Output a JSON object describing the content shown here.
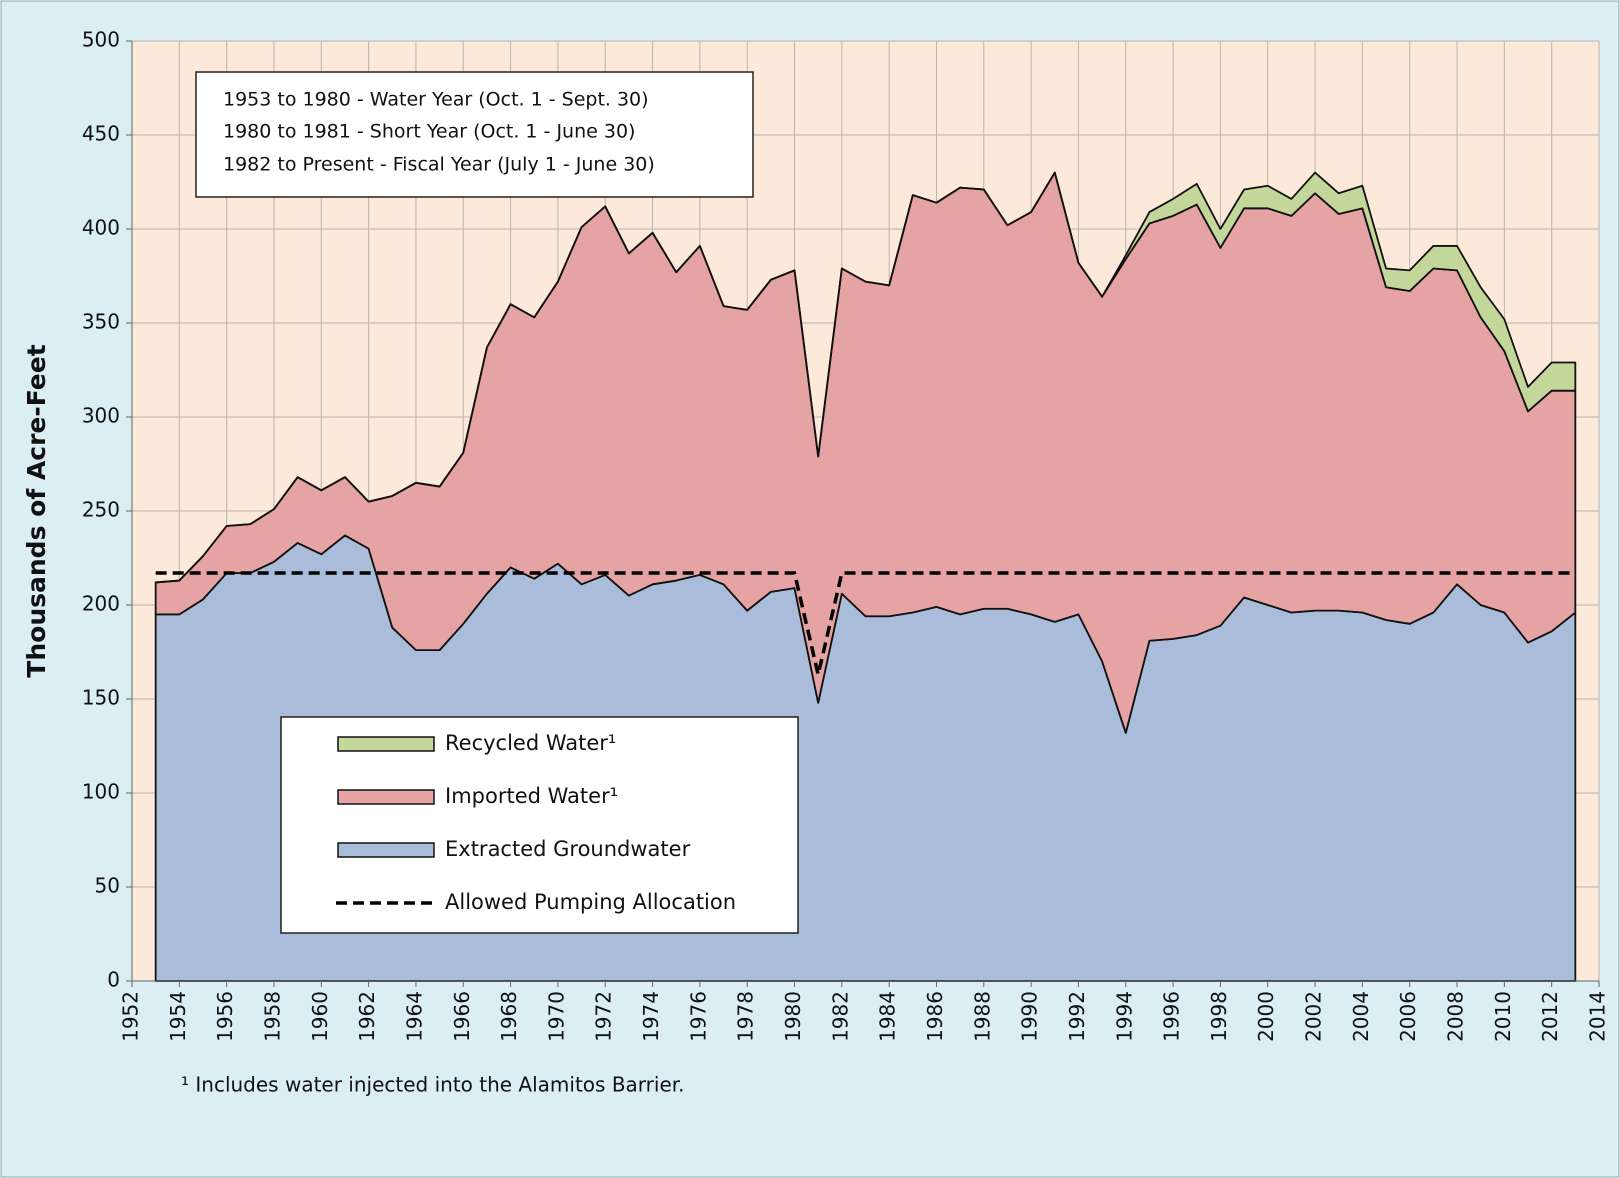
{
  "chart_data": {
    "type": "stacked_area",
    "y_label": "Thousands of Acre-Feet",
    "annotation": [
      "1953 to 1980 - Water Year (Oct. 1 - Sept. 30)",
      "1980 to 1981 - Short Year (Oct. 1 - June 30)",
      "1982 to Present - Fiscal Year (July 1 - June 30)"
    ],
    "footnote": "¹  Includes water injected into the Alamitos Barrier.",
    "x": [
      1953,
      1954,
      1955,
      1956,
      1957,
      1958,
      1959,
      1960,
      1961,
      1962,
      1963,
      1964,
      1965,
      1966,
      1967,
      1968,
      1969,
      1970,
      1971,
      1972,
      1973,
      1974,
      1975,
      1976,
      1977,
      1978,
      1979,
      1980,
      1981,
      1982,
      1983,
      1984,
      1985,
      1986,
      1987,
      1988,
      1989,
      1990,
      1991,
      1992,
      1993,
      1994,
      1995,
      1996,
      1997,
      1998,
      1999,
      2000,
      2001,
      2002,
      2003,
      2004,
      2005,
      2006,
      2007,
      2008,
      2009,
      2010,
      2011,
      2012,
      2013
    ],
    "series": [
      {
        "name": "Extracted Groundwater",
        "color": "#a9bcd9",
        "values": [
          195,
          195,
          203,
          217,
          217,
          223,
          233,
          227,
          237,
          230,
          188,
          176,
          176,
          190,
          206,
          220,
          214,
          222,
          211,
          216,
          205,
          211,
          213,
          216,
          211,
          197,
          207,
          209,
          148,
          206,
          194,
          194,
          196,
          199,
          195,
          198,
          198,
          195,
          191,
          195,
          170,
          132,
          181,
          182,
          184,
          189,
          204,
          200,
          196,
          197,
          197,
          196,
          192,
          190,
          196,
          211,
          200,
          196,
          180,
          186,
          196
        ]
      },
      {
        "name": "Imported Water¹",
        "color": "#e6a3a3",
        "values": [
          17,
          18,
          23,
          25,
          26,
          28,
          35,
          34,
          31,
          25,
          70,
          89,
          87,
          91,
          131,
          140,
          139,
          150,
          190,
          196,
          182,
          187,
          164,
          175,
          148,
          160,
          166,
          169,
          131,
          173,
          178,
          176,
          222,
          215,
          227,
          223,
          204,
          214,
          239,
          187,
          194,
          252,
          222,
          225,
          229,
          201,
          207,
          211,
          211,
          222,
          211,
          215,
          177,
          177,
          183,
          167,
          153,
          139,
          123,
          128,
          118
        ]
      },
      {
        "name": "Recycled Water¹",
        "color": "#c4d79b",
        "values": [
          0,
          0,
          0,
          0,
          0,
          0,
          0,
          0,
          0,
          0,
          0,
          0,
          0,
          0,
          0,
          0,
          0,
          0,
          0,
          0,
          0,
          0,
          0,
          0,
          0,
          0,
          0,
          0,
          0,
          0,
          0,
          0,
          0,
          0,
          0,
          0,
          0,
          0,
          0,
          0,
          0,
          2,
          6,
          9,
          11,
          10,
          10,
          12,
          9,
          11,
          11,
          12,
          10,
          11,
          12,
          13,
          16,
          17,
          13,
          15,
          15
        ]
      },
      {
        "name": "Allowed Pumping Allocation",
        "type": "line",
        "dashed": true,
        "color": "#000000",
        "values": [
          217,
          217,
          217,
          217,
          217,
          217,
          217,
          217,
          217,
          217,
          217,
          217,
          217,
          217,
          217,
          217,
          217,
          217,
          217,
          217,
          217,
          217,
          217,
          217,
          217,
          217,
          217,
          217,
          163,
          217,
          217,
          217,
          217,
          217,
          217,
          217,
          217,
          217,
          217,
          217,
          217,
          217,
          217,
          217,
          217,
          217,
          217,
          217,
          217,
          217,
          217,
          217,
          217,
          217,
          217,
          217,
          217,
          217,
          217,
          217,
          217
        ]
      }
    ],
    "xlim": [
      1952,
      2014
    ],
    "xticks": [
      1952,
      1954,
      1956,
      1958,
      1960,
      1962,
      1964,
      1966,
      1968,
      1970,
      1972,
      1974,
      1976,
      1978,
      1980,
      1982,
      1984,
      1986,
      1988,
      1990,
      1992,
      1994,
      1996,
      1998,
      2000,
      2002,
      2004,
      2006,
      2008,
      2010,
      2012,
      2014
    ],
    "ylim": [
      0,
      500
    ],
    "yticks": [
      0,
      50,
      100,
      150,
      200,
      250,
      300,
      350,
      400,
      450,
      500
    ],
    "grid": true
  }
}
